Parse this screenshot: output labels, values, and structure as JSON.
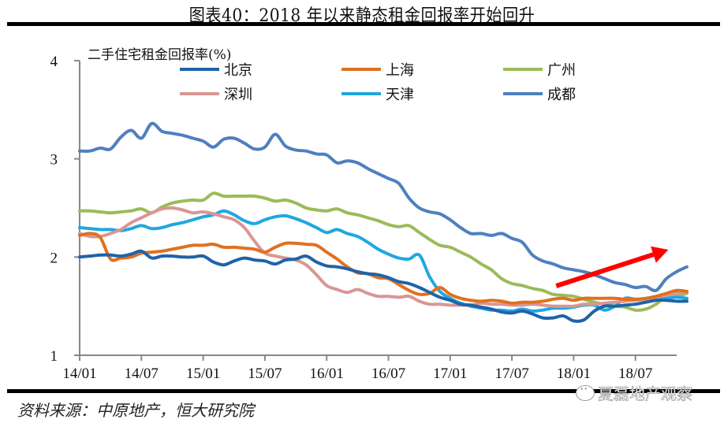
{
  "header": {
    "title": "图表40：2018 年以来静态租金回报率开始回升"
  },
  "footer": {
    "source": "资料来源：中原地产，恒大研究院",
    "watermark": "夏磊地产观察"
  },
  "chart_data": {
    "type": "line",
    "title": "图表40：2018 年以来静态租金回报率开始回升",
    "ylabel": "二手住宅租金回报率(%)",
    "xlabel": "",
    "ylim": [
      1,
      4
    ],
    "yticks": [
      1,
      2,
      3,
      4
    ],
    "xtick_labels": [
      "14/01",
      "14/07",
      "15/01",
      "15/07",
      "16/01",
      "16/07",
      "17/01",
      "17/07",
      "18/01",
      "18/07"
    ],
    "x_start": "2014-01",
    "x_step": "monthly",
    "x_max_months": 60,
    "grid": false,
    "legend_position": "top",
    "annotation": "red upward arrow from 2017/11 to 2018/11 indicating rising rental yield",
    "series": [
      {
        "name": "北京",
        "color": "#1F63A8",
        "values": [
          2.0,
          2.01,
          2.02,
          2.02,
          2.01,
          2.03,
          2.06,
          1.99,
          2.01,
          2.01,
          2.0,
          2.0,
          2.01,
          1.95,
          1.92,
          1.96,
          1.99,
          1.97,
          1.96,
          1.93,
          1.97,
          1.98,
          2.01,
          1.95,
          1.91,
          1.9,
          1.88,
          1.85,
          1.83,
          1.82,
          1.79,
          1.75,
          1.73,
          1.69,
          1.64,
          1.59,
          1.56,
          1.52,
          1.51,
          1.49,
          1.47,
          1.44,
          1.43,
          1.45,
          1.42,
          1.38,
          1.38,
          1.4,
          1.35,
          1.36,
          1.45,
          1.5,
          1.5,
          1.51,
          1.52,
          1.54,
          1.56,
          1.56,
          1.55,
          1.55
        ]
      },
      {
        "name": "上海",
        "color": "#E07020",
        "values": [
          2.22,
          2.24,
          2.2,
          1.98,
          1.99,
          2.0,
          2.04,
          2.05,
          2.06,
          2.08,
          2.1,
          2.12,
          2.12,
          2.13,
          2.1,
          2.1,
          2.09,
          2.08,
          2.05,
          2.1,
          2.14,
          2.14,
          2.13,
          2.12,
          2.05,
          1.98,
          1.9,
          1.84,
          1.83,
          1.79,
          1.78,
          1.72,
          1.66,
          1.62,
          1.63,
          1.69,
          1.62,
          1.58,
          1.56,
          1.55,
          1.56,
          1.55,
          1.53,
          1.54,
          1.54,
          1.55,
          1.57,
          1.58,
          1.56,
          1.58,
          1.58,
          1.58,
          1.58,
          1.57,
          1.57,
          1.58,
          1.6,
          1.63,
          1.66,
          1.65
        ]
      },
      {
        "name": "广州",
        "color": "#9BBB59",
        "values": [
          2.47,
          2.47,
          2.46,
          2.45,
          2.46,
          2.47,
          2.49,
          2.45,
          2.51,
          2.55,
          2.57,
          2.58,
          2.58,
          2.65,
          2.62,
          2.62,
          2.62,
          2.62,
          2.6,
          2.57,
          2.58,
          2.55,
          2.5,
          2.48,
          2.47,
          2.49,
          2.45,
          2.43,
          2.4,
          2.37,
          2.33,
          2.31,
          2.32,
          2.25,
          2.18,
          2.12,
          2.1,
          2.05,
          2.0,
          1.93,
          1.87,
          1.78,
          1.73,
          1.71,
          1.68,
          1.66,
          1.62,
          1.61,
          1.6,
          1.57,
          1.54,
          1.52,
          1.5,
          1.49,
          1.46,
          1.47,
          1.52,
          1.6,
          1.6,
          1.63
        ]
      },
      {
        "name": "深圳",
        "color": "#D99694",
        "values": [
          2.24,
          2.21,
          2.21,
          2.24,
          2.28,
          2.35,
          2.4,
          2.45,
          2.49,
          2.5,
          2.48,
          2.45,
          2.46,
          2.44,
          2.41,
          2.38,
          2.3,
          2.16,
          2.04,
          2.01,
          1.99,
          1.97,
          1.92,
          1.82,
          1.71,
          1.67,
          1.64,
          1.67,
          1.63,
          1.6,
          1.6,
          1.59,
          1.6,
          1.55,
          1.52,
          1.52,
          1.51,
          1.51,
          1.51,
          1.53,
          1.52,
          1.52,
          1.51,
          1.51,
          1.52,
          1.51,
          1.5,
          1.5,
          1.5,
          1.52,
          1.52,
          1.53,
          1.54,
          1.55,
          1.56,
          1.57,
          1.59,
          1.61,
          1.63,
          1.64
        ]
      },
      {
        "name": "天津",
        "color": "#1FA7E0",
        "values": [
          2.3,
          2.29,
          2.28,
          2.28,
          2.27,
          2.29,
          2.32,
          2.29,
          2.3,
          2.33,
          2.35,
          2.38,
          2.41,
          2.43,
          2.47,
          2.43,
          2.37,
          2.34,
          2.38,
          2.41,
          2.42,
          2.39,
          2.35,
          2.3,
          2.25,
          2.28,
          2.24,
          2.21,
          2.15,
          2.08,
          2.03,
          1.99,
          1.98,
          2.02,
          1.8,
          1.65,
          1.58,
          1.53,
          1.5,
          1.48,
          1.46,
          1.46,
          1.45,
          1.47,
          1.45,
          1.46,
          1.48,
          1.48,
          1.49,
          1.51,
          1.51,
          1.46,
          1.5,
          1.58,
          1.57,
          1.57,
          1.58,
          1.58,
          1.59,
          1.58
        ]
      },
      {
        "name": "成都",
        "color": "#4F7FBF",
        "values": [
          3.08,
          3.08,
          3.11,
          3.1,
          3.22,
          3.29,
          3.21,
          3.36,
          3.28,
          3.26,
          3.24,
          3.21,
          3.18,
          3.12,
          3.2,
          3.21,
          3.16,
          3.1,
          3.12,
          3.25,
          3.13,
          3.09,
          3.08,
          3.05,
          3.04,
          2.96,
          2.98,
          2.96,
          2.9,
          2.85,
          2.8,
          2.75,
          2.6,
          2.5,
          2.46,
          2.44,
          2.38,
          2.3,
          2.24,
          2.24,
          2.22,
          2.24,
          2.19,
          2.15,
          2.02,
          1.96,
          1.93,
          1.89,
          1.87,
          1.85,
          1.82,
          1.78,
          1.74,
          1.72,
          1.69,
          1.7,
          1.66,
          1.78,
          1.85,
          1.9
        ]
      }
    ]
  }
}
